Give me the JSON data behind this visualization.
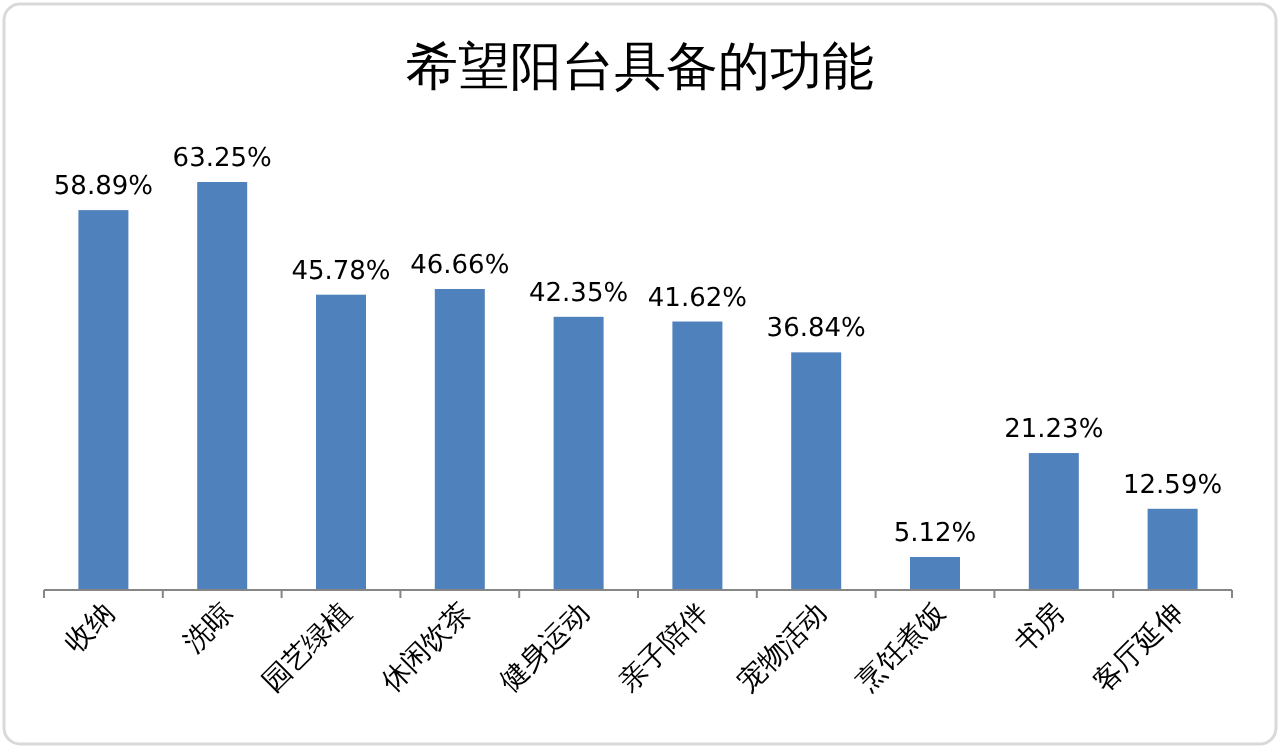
{
  "chart_data": {
    "type": "bar",
    "title": "希望阳台具备的功能",
    "categories": [
      "收纳",
      "洗晾",
      "园艺绿植",
      "休闲饮茶",
      "健身运动",
      "亲子陪伴",
      "宠物活动",
      "烹饪煮饭",
      "书房",
      "客厅延伸"
    ],
    "values": [
      58.89,
      63.25,
      45.78,
      46.66,
      42.35,
      41.62,
      36.84,
      5.12,
      21.23,
      12.59
    ],
    "value_labels": [
      "58.89%",
      "63.25%",
      "45.78%",
      "46.66%",
      "42.35%",
      "41.62%",
      "36.84%",
      "5.12%",
      "21.23%",
      "12.59%"
    ],
    "color": "#4f81bd"
  }
}
